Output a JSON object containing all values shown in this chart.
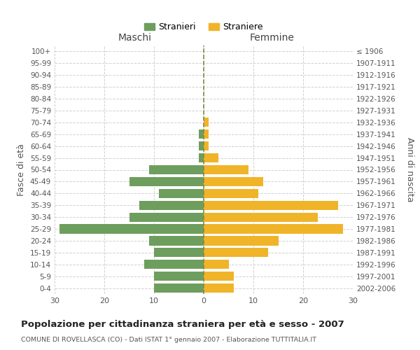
{
  "age_groups": [
    "0-4",
    "5-9",
    "10-14",
    "15-19",
    "20-24",
    "25-29",
    "30-34",
    "35-39",
    "40-44",
    "45-49",
    "50-54",
    "55-59",
    "60-64",
    "65-69",
    "70-74",
    "75-79",
    "80-84",
    "85-89",
    "90-94",
    "95-99",
    "100+"
  ],
  "birth_years": [
    "2002-2006",
    "1997-2001",
    "1992-1996",
    "1987-1991",
    "1982-1986",
    "1977-1981",
    "1972-1976",
    "1967-1971",
    "1962-1966",
    "1957-1961",
    "1952-1956",
    "1947-1951",
    "1942-1946",
    "1937-1941",
    "1932-1936",
    "1927-1931",
    "1922-1926",
    "1917-1921",
    "1912-1916",
    "1907-1911",
    "≤ 1906"
  ],
  "maschi": [
    10,
    10,
    12,
    10,
    11,
    29,
    15,
    13,
    9,
    15,
    11,
    1,
    1,
    1,
    0,
    0,
    0,
    0,
    0,
    0,
    0
  ],
  "femmine": [
    6,
    6,
    5,
    13,
    15,
    28,
    23,
    27,
    11,
    12,
    9,
    3,
    1,
    1,
    1,
    0,
    0,
    0,
    0,
    0,
    0
  ],
  "color_maschi": "#6d9e5e",
  "color_femmine": "#f0b429",
  "title": "Popolazione per cittadinanza straniera per età e sesso - 2007",
  "subtitle": "COMUNE DI ROVELLASCA (CO) - Dati ISTAT 1° gennaio 2007 - Elaborazione TUTTITALIA.IT",
  "xlabel_left": "Maschi",
  "xlabel_right": "Femmine",
  "ylabel_left": "Fasce di età",
  "ylabel_right": "Anni di nascita",
  "legend_stranieri": "Stranieri",
  "legend_straniere": "Straniere",
  "xlim": 30,
  "bg_color": "#ffffff",
  "grid_color": "#cccccc"
}
